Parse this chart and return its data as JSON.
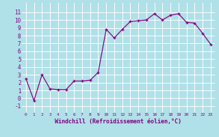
{
  "x": [
    0,
    1,
    2,
    3,
    4,
    5,
    6,
    7,
    8,
    9,
    10,
    11,
    12,
    13,
    14,
    15,
    16,
    17,
    18,
    19,
    20,
    21,
    22,
    23
  ],
  "y": [
    2.5,
    -0.3,
    3.0,
    1.2,
    1.1,
    1.1,
    2.2,
    2.2,
    2.3,
    3.3,
    8.8,
    7.7,
    8.8,
    9.8,
    9.9,
    10.0,
    10.8,
    10.0,
    10.6,
    10.8,
    9.7,
    9.6,
    8.3,
    6.9
  ],
  "xlabel": "Windchill (Refroidissement éolien,°C)",
  "xlim": [
    -0.5,
    23.5
  ],
  "ylim": [
    -1.8,
    12.2
  ],
  "yticks": [
    -1,
    0,
    1,
    2,
    3,
    4,
    5,
    6,
    7,
    8,
    9,
    10,
    11
  ],
  "xticks": [
    0,
    1,
    2,
    3,
    4,
    5,
    6,
    7,
    8,
    9,
    10,
    11,
    12,
    13,
    14,
    15,
    16,
    17,
    18,
    19,
    20,
    21,
    22,
    23
  ],
  "line_color": "#800080",
  "marker": "+",
  "bg_color": "#b0e0e8",
  "grid_color": "#ffffff",
  "tick_color": "#800080",
  "label_color": "#800080"
}
